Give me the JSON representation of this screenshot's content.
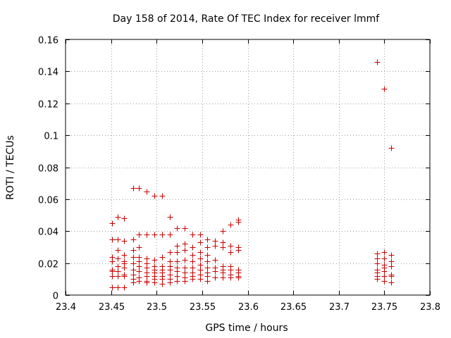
{
  "chart_data": {
    "type": "scatter",
    "title": "Day 158 of 2014, Rate Of TEC Index for receiver lmmf",
    "xlabel": "GPS time / hours",
    "ylabel": "ROTI / TECUs",
    "xlim": [
      23.4,
      23.8
    ],
    "ylim": [
      0,
      0.16
    ],
    "xticks": [
      23.4,
      23.45,
      23.5,
      23.55,
      23.6,
      23.65,
      23.7,
      23.75,
      23.8
    ],
    "xtick_labels": [
      "23.4",
      "23.45",
      "23.5",
      "23.55",
      "23.6",
      "23.65",
      "23.7",
      "23.75",
      "23.8"
    ],
    "yticks": [
      0,
      0.02,
      0.04,
      0.06,
      0.08,
      0.1,
      0.12,
      0.14,
      0.16
    ],
    "ytick_labels": [
      "0",
      "0.02",
      "0.04",
      "0.06",
      "0.08",
      "0.1",
      "0.12",
      "0.14",
      "0.16"
    ],
    "grid": true,
    "marker": "+",
    "color": "#cc0000",
    "series": [
      {
        "name": "lmmf",
        "points": [
          [
            23.4508,
            0.045
          ],
          [
            23.4508,
            0.035
          ],
          [
            23.4508,
            0.024
          ],
          [
            23.4508,
            0.021
          ],
          [
            23.4508,
            0.016
          ],
          [
            23.4508,
            0.015
          ],
          [
            23.4508,
            0.012
          ],
          [
            23.4508,
            0.005
          ],
          [
            23.4575,
            0.049
          ],
          [
            23.4575,
            0.035
          ],
          [
            23.4575,
            0.028
          ],
          [
            23.4575,
            0.023
          ],
          [
            23.4575,
            0.018
          ],
          [
            23.4575,
            0.015
          ],
          [
            23.4575,
            0.012
          ],
          [
            23.4575,
            0.005
          ],
          [
            23.4642,
            0.048
          ],
          [
            23.4642,
            0.034
          ],
          [
            23.4642,
            0.025
          ],
          [
            23.4642,
            0.021
          ],
          [
            23.4642,
            0.02
          ],
          [
            23.4642,
            0.017
          ],
          [
            23.4642,
            0.013
          ],
          [
            23.4642,
            0.012
          ],
          [
            23.4642,
            0.005
          ],
          [
            23.4742,
            0.067
          ],
          [
            23.4742,
            0.035
          ],
          [
            23.4742,
            0.028
          ],
          [
            23.4742,
            0.024
          ],
          [
            23.4742,
            0.02
          ],
          [
            23.4742,
            0.016
          ],
          [
            23.4742,
            0.013
          ],
          [
            23.4742,
            0.01
          ],
          [
            23.4742,
            0.008
          ],
          [
            23.4808,
            0.067
          ],
          [
            23.4808,
            0.038
          ],
          [
            23.4808,
            0.03
          ],
          [
            23.4808,
            0.024
          ],
          [
            23.4808,
            0.021
          ],
          [
            23.4808,
            0.018
          ],
          [
            23.4808,
            0.015
          ],
          [
            23.4808,
            0.011
          ],
          [
            23.4808,
            0.009
          ],
          [
            23.4892,
            0.065
          ],
          [
            23.4892,
            0.038
          ],
          [
            23.4892,
            0.023
          ],
          [
            23.4892,
            0.02
          ],
          [
            23.4892,
            0.017
          ],
          [
            23.4892,
            0.014
          ],
          [
            23.4892,
            0.012
          ],
          [
            23.4892,
            0.009
          ],
          [
            23.4892,
            0.008
          ],
          [
            23.4975,
            0.062
          ],
          [
            23.4975,
            0.038
          ],
          [
            23.4975,
            0.022
          ],
          [
            23.4975,
            0.018
          ],
          [
            23.4975,
            0.016
          ],
          [
            23.4975,
            0.014
          ],
          [
            23.4975,
            0.012
          ],
          [
            23.4975,
            0.01
          ],
          [
            23.4975,
            0.008
          ],
          [
            23.5058,
            0.062
          ],
          [
            23.5058,
            0.038
          ],
          [
            23.5058,
            0.024
          ],
          [
            23.5058,
            0.018
          ],
          [
            23.5058,
            0.016
          ],
          [
            23.5058,
            0.014
          ],
          [
            23.5058,
            0.012
          ],
          [
            23.5058,
            0.01
          ],
          [
            23.5058,
            0.007
          ],
          [
            23.5142,
            0.049
          ],
          [
            23.5142,
            0.038
          ],
          [
            23.5142,
            0.027
          ],
          [
            23.5142,
            0.021
          ],
          [
            23.5142,
            0.018
          ],
          [
            23.5142,
            0.016
          ],
          [
            23.5142,
            0.013
          ],
          [
            23.5142,
            0.01
          ],
          [
            23.5142,
            0.008
          ],
          [
            23.5225,
            0.042
          ],
          [
            23.5225,
            0.031
          ],
          [
            23.5225,
            0.027
          ],
          [
            23.5225,
            0.021
          ],
          [
            23.5225,
            0.017
          ],
          [
            23.5225,
            0.015
          ],
          [
            23.5225,
            0.012
          ],
          [
            23.5225,
            0.009
          ],
          [
            23.5308,
            0.042
          ],
          [
            23.5308,
            0.032
          ],
          [
            23.5308,
            0.028
          ],
          [
            23.5308,
            0.022
          ],
          [
            23.5308,
            0.017
          ],
          [
            23.5308,
            0.014
          ],
          [
            23.5308,
            0.011
          ],
          [
            23.5308,
            0.009
          ],
          [
            23.5392,
            0.038
          ],
          [
            23.5392,
            0.03
          ],
          [
            23.5392,
            0.025
          ],
          [
            23.5392,
            0.021
          ],
          [
            23.5392,
            0.017
          ],
          [
            23.5392,
            0.014
          ],
          [
            23.5392,
            0.012
          ],
          [
            23.5392,
            0.01
          ],
          [
            23.5475,
            0.038
          ],
          [
            23.5475,
            0.033
          ],
          [
            23.5475,
            0.027
          ],
          [
            23.5475,
            0.023
          ],
          [
            23.5475,
            0.019
          ],
          [
            23.5475,
            0.016
          ],
          [
            23.5475,
            0.013
          ],
          [
            23.5475,
            0.01
          ],
          [
            23.5558,
            0.035
          ],
          [
            23.5558,
            0.03
          ],
          [
            23.5558,
            0.025
          ],
          [
            23.5558,
            0.021
          ],
          [
            23.5558,
            0.017
          ],
          [
            23.5558,
            0.014
          ],
          [
            23.5558,
            0.012
          ],
          [
            23.5558,
            0.009
          ],
          [
            23.5642,
            0.034
          ],
          [
            23.5642,
            0.031
          ],
          [
            23.5642,
            0.022
          ],
          [
            23.5642,
            0.017
          ],
          [
            23.5642,
            0.015
          ],
          [
            23.5642,
            0.011
          ],
          [
            23.5725,
            0.04
          ],
          [
            23.5725,
            0.033
          ],
          [
            23.5725,
            0.03
          ],
          [
            23.5725,
            0.018
          ],
          [
            23.5725,
            0.016
          ],
          [
            23.5725,
            0.014
          ],
          [
            23.5725,
            0.011
          ],
          [
            23.5808,
            0.044
          ],
          [
            23.5808,
            0.031
          ],
          [
            23.5808,
            0.027
          ],
          [
            23.5808,
            0.018
          ],
          [
            23.5808,
            0.016
          ],
          [
            23.5808,
            0.013
          ],
          [
            23.5808,
            0.011
          ],
          [
            23.5892,
            0.047
          ],
          [
            23.5892,
            0.046
          ],
          [
            23.5892,
            0.03
          ],
          [
            23.5892,
            0.028
          ],
          [
            23.5892,
            0.016
          ],
          [
            23.5892,
            0.014
          ],
          [
            23.5892,
            0.012
          ],
          [
            23.5892,
            0.011
          ],
          [
            23.7417,
            0.146
          ],
          [
            23.7417,
            0.026
          ],
          [
            23.7417,
            0.023
          ],
          [
            23.7417,
            0.02
          ],
          [
            23.7417,
            0.016
          ],
          [
            23.7417,
            0.014
          ],
          [
            23.7417,
            0.012
          ],
          [
            23.7417,
            0.01
          ],
          [
            23.75,
            0.129
          ],
          [
            23.75,
            0.027
          ],
          [
            23.75,
            0.023
          ],
          [
            23.75,
            0.019
          ],
          [
            23.75,
            0.017
          ],
          [
            23.75,
            0.015
          ],
          [
            23.75,
            0.012
          ],
          [
            23.75,
            0.009
          ],
          [
            23.7575,
            0.092
          ],
          [
            23.7575,
            0.025
          ],
          [
            23.7575,
            0.021
          ],
          [
            23.7575,
            0.018
          ],
          [
            23.7575,
            0.013
          ],
          [
            23.7575,
            0.012
          ],
          [
            23.7575,
            0.008
          ]
        ]
      }
    ]
  }
}
